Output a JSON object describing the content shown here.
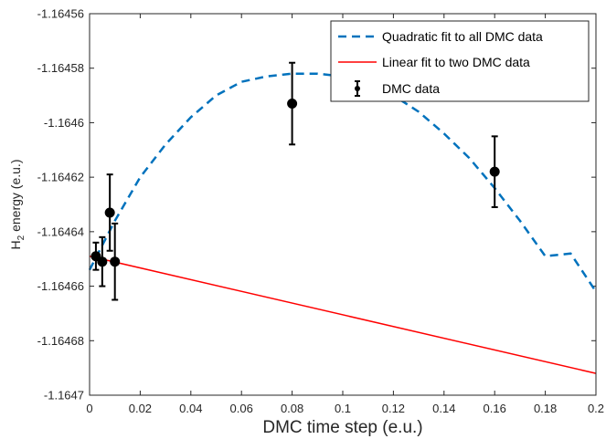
{
  "chart_data": {
    "type": "scatter",
    "xlabel": "DMC time step (e.u.)",
    "ylabel": "H₂ energy (e.u.)",
    "ylabel_parts": {
      "prefix": "H",
      "subscript": "2",
      "suffix": " energy (e.u.)"
    },
    "xlim": [
      0,
      0.2
    ],
    "ylim": [
      -1.1647,
      -1.16456
    ],
    "xticks": [
      0,
      0.02,
      0.04,
      0.06,
      0.08,
      0.1,
      0.12,
      0.14,
      0.16,
      0.18,
      0.2
    ],
    "xtick_labels": [
      "0",
      "0.02",
      "0.04",
      "0.06",
      "0.08",
      "0.1",
      "0.12",
      "0.14",
      "0.16",
      "0.18",
      "0.2"
    ],
    "yticks": [
      -1.16456,
      -1.16458,
      -1.1646,
      -1.16462,
      -1.16464,
      -1.16466,
      -1.16468,
      -1.1647
    ],
    "ytick_labels": [
      "-1.16456",
      "-1.16458",
      "-1.1646",
      "-1.16462",
      "-1.16464",
      "-1.16466",
      "-1.16468",
      "-1.1647"
    ],
    "grid": false,
    "legend_position": "top-right",
    "series": [
      {
        "name": "Quadratic fit to all DMC data",
        "kind": "dashed-line",
        "color": "#0072BD",
        "x": [
          0,
          0.01,
          0.02,
          0.03,
          0.04,
          0.05,
          0.06,
          0.07,
          0.08,
          0.09,
          0.1,
          0.11,
          0.12,
          0.13,
          0.14,
          0.15,
          0.16,
          0.17,
          0.18,
          0.19,
          0.2
        ],
        "y": [
          -1.164654,
          -1.164636,
          -1.16462,
          -1.164608,
          -1.164598,
          -1.16459,
          -1.164585,
          -1.164583,
          -1.164582,
          -1.164582,
          -1.164583,
          -1.164586,
          -1.16459,
          -1.164596,
          -1.164604,
          -1.164613,
          -1.164624,
          -1.164636,
          -1.164649,
          -1.164648,
          -1.164662
        ]
      },
      {
        "name": "Linear fit to two DMC data",
        "kind": "line",
        "color": "#FF0000",
        "x": [
          0,
          0.2
        ],
        "y": [
          -1.164649,
          -1.164692
        ]
      },
      {
        "name": "DMC data",
        "kind": "errorbar",
        "color": "#000000",
        "x": [
          0.0025,
          0.005,
          0.008,
          0.01,
          0.08,
          0.16
        ],
        "y": [
          -1.164649,
          -1.164651,
          -1.164633,
          -1.164651,
          -1.164593,
          -1.164618
        ],
        "err": [
          5e-06,
          9e-06,
          1.4e-05,
          1.4e-05,
          1.5e-05,
          1.3e-05
        ]
      }
    ]
  }
}
